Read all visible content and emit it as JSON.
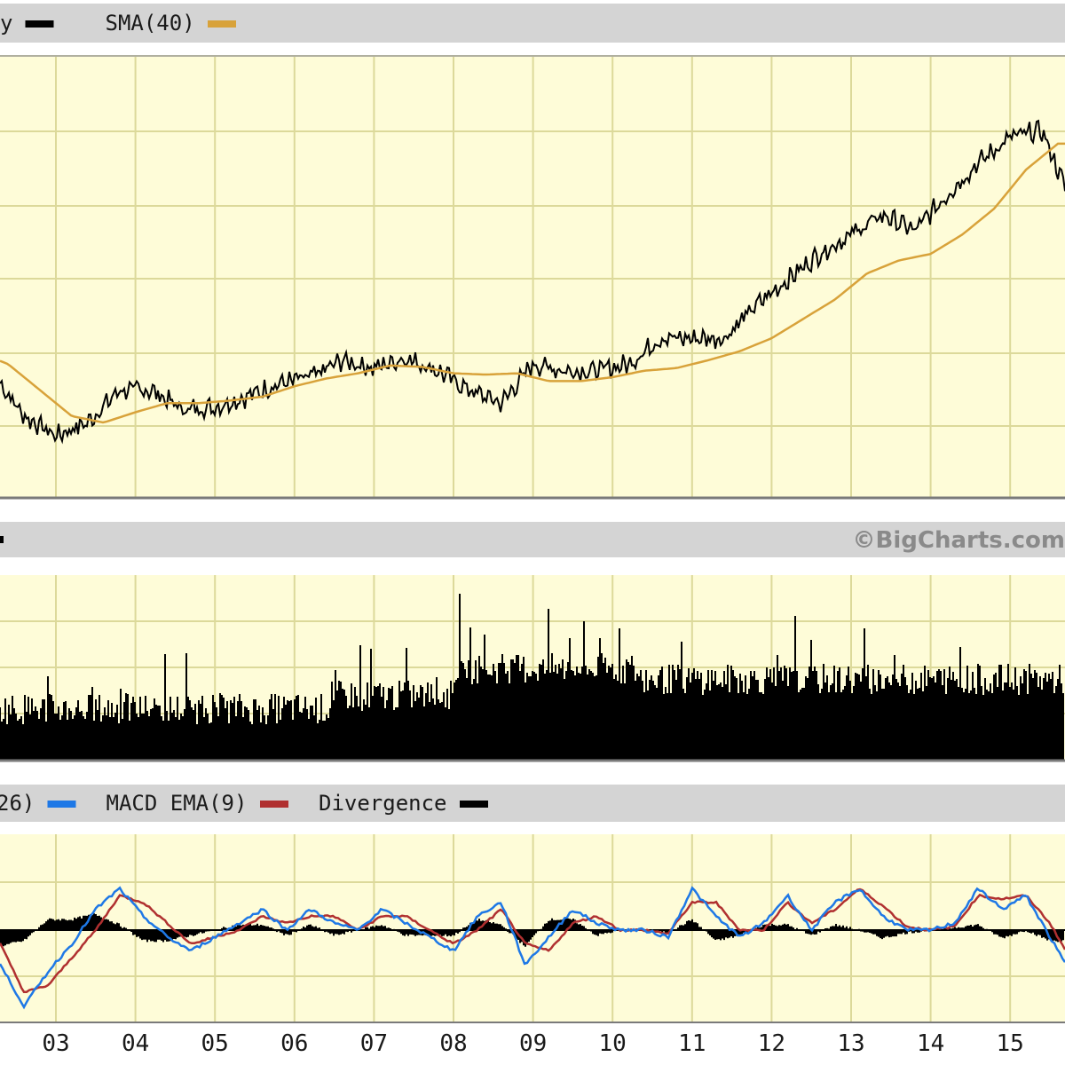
{
  "colors": {
    "panel_bg": "#fefcd8",
    "grid": "#dcd99a",
    "header_bg": "#d4d4d4",
    "frame": "#7a7a7a",
    "price_line": "#000000",
    "sma_line": "#d8a23a",
    "volume_bar": "#000000",
    "macd_line": "#1e78e6",
    "macd_ema_line": "#b03030",
    "divergence": "#000000",
    "credit": "#8a8a8a"
  },
  "legend_price": [
    {
      "label": "y",
      "color": "#000000"
    },
    {
      "label": "SMA(40)",
      "color": "#d8a23a"
    }
  ],
  "legend_macd": [
    {
      "label": "26)",
      "color": "#1e78e6"
    },
    {
      "label": "MACD EMA(9)",
      "color": "#b03030"
    },
    {
      "label": "Divergence",
      "color": "#000000"
    }
  ],
  "credit": "©BigCharts.com",
  "chart_data": [
    {
      "type": "line",
      "panel": "price",
      "x_ticks": [
        "03",
        "04",
        "05",
        "06",
        "07",
        "08",
        "09",
        "10",
        "11",
        "12",
        "13",
        "14",
        "15"
      ],
      "series": [
        {
          "name": "y",
          "x": [
            2.0,
            2.3,
            2.6,
            3.0,
            3.4,
            3.8,
            4.2,
            4.6,
            5.0,
            5.4,
            5.8,
            6.2,
            6.6,
            7.0,
            7.4,
            7.8,
            8.2,
            8.6,
            9.0,
            9.4,
            9.8,
            10.2,
            10.6,
            11.0,
            11.4,
            11.8,
            12.2,
            12.6,
            13.0,
            13.4,
            13.8,
            14.2,
            14.6,
            15.0,
            15.4,
            15.7
          ],
          "y": [
            3.9,
            3.6,
            3.35,
            3.2,
            3.3,
            3.55,
            3.55,
            3.4,
            3.42,
            3.5,
            3.6,
            3.65,
            3.78,
            3.72,
            3.8,
            3.7,
            3.55,
            3.45,
            3.75,
            3.7,
            3.7,
            3.75,
            3.95,
            3.95,
            3.95,
            4.2,
            4.4,
            4.6,
            4.75,
            4.9,
            4.78,
            5.05,
            5.3,
            5.5,
            5.55,
            5.1
          ]
        },
        {
          "name": "SMA(40)",
          "x": [
            2.0,
            2.4,
            2.8,
            3.2,
            3.6,
            4.0,
            4.4,
            4.8,
            5.2,
            5.6,
            6.0,
            6.4,
            6.8,
            7.2,
            7.6,
            8.0,
            8.4,
            8.8,
            9.2,
            9.6,
            10.0,
            10.4,
            10.8,
            11.2,
            11.6,
            12.0,
            12.4,
            12.8,
            13.2,
            13.6,
            14.0,
            14.4,
            14.8,
            15.2,
            15.6
          ],
          "y": [
            3.85,
            3.75,
            3.55,
            3.35,
            3.3,
            3.38,
            3.45,
            3.45,
            3.47,
            3.5,
            3.58,
            3.64,
            3.68,
            3.74,
            3.73,
            3.68,
            3.67,
            3.68,
            3.62,
            3.62,
            3.65,
            3.7,
            3.72,
            3.78,
            3.85,
            3.95,
            4.1,
            4.25,
            4.45,
            4.55,
            4.6,
            4.75,
            4.95,
            5.25,
            5.45
          ]
        }
      ]
    },
    {
      "type": "bar",
      "panel": "volume",
      "x_ticks": [
        "03",
        "04",
        "05",
        "06",
        "07",
        "08",
        "09",
        "10",
        "11",
        "12",
        "13",
        "14",
        "15"
      ],
      "note": "daily volume bars, heaviest around 08-10"
    },
    {
      "type": "line",
      "panel": "macd",
      "x_ticks": [
        "03",
        "04",
        "05",
        "06",
        "07",
        "08",
        "09",
        "10",
        "11",
        "12",
        "13",
        "14",
        "15"
      ],
      "series": [
        {
          "name": "26)",
          "x": [
            2.0,
            2.3,
            2.6,
            2.9,
            3.2,
            3.5,
            3.8,
            4.1,
            4.4,
            4.7,
            5.0,
            5.3,
            5.6,
            5.9,
            6.2,
            6.5,
            6.8,
            7.1,
            7.4,
            7.7,
            8.0,
            8.3,
            8.6,
            8.9,
            9.2,
            9.5,
            9.8,
            10.1,
            10.4,
            10.7,
            11.0,
            11.3,
            11.6,
            11.9,
            12.2,
            12.5,
            12.8,
            13.1,
            13.4,
            13.7,
            14.0,
            14.3,
            14.6,
            14.9,
            15.2,
            15.5,
            15.8
          ],
          "y": [
            0.3,
            -0.5,
            -1.1,
            -0.6,
            -0.2,
            0.3,
            0.6,
            0.2,
            -0.1,
            -0.3,
            -0.1,
            0.1,
            0.3,
            0.0,
            0.3,
            0.1,
            0.0,
            0.3,
            0.1,
            -0.1,
            -0.3,
            0.2,
            0.4,
            -0.5,
            -0.1,
            0.3,
            0.1,
            0.0,
            0.0,
            -0.1,
            0.6,
            0.2,
            -0.1,
            0.1,
            0.5,
            0.0,
            0.4,
            0.6,
            0.2,
            0.0,
            0.0,
            0.1,
            0.6,
            0.3,
            0.5,
            -0.1,
            -0.7
          ]
        },
        {
          "name": "MACD EMA(9)",
          "x": [
            2.0,
            2.3,
            2.6,
            2.9,
            3.2,
            3.5,
            3.8,
            4.1,
            4.4,
            4.7,
            5.0,
            5.3,
            5.6,
            5.9,
            6.2,
            6.5,
            6.8,
            7.1,
            7.4,
            7.7,
            8.0,
            8.3,
            8.6,
            8.9,
            9.2,
            9.5,
            9.8,
            10.1,
            10.4,
            10.7,
            11.0,
            11.3,
            11.6,
            11.9,
            12.2,
            12.5,
            12.8,
            13.1,
            13.4,
            13.7,
            14.0,
            14.3,
            14.6,
            14.9,
            15.2,
            15.5,
            15.8
          ],
          "y": [
            0.3,
            -0.2,
            -0.9,
            -0.8,
            -0.4,
            0.0,
            0.5,
            0.4,
            0.1,
            -0.2,
            -0.1,
            0.0,
            0.2,
            0.1,
            0.2,
            0.2,
            0.0,
            0.2,
            0.2,
            0.0,
            -0.2,
            0.0,
            0.3,
            -0.2,
            -0.3,
            0.1,
            0.2,
            0.0,
            0.0,
            -0.05,
            0.4,
            0.4,
            0.0,
            0.0,
            0.4,
            0.1,
            0.3,
            0.6,
            0.35,
            0.05,
            0.0,
            0.05,
            0.5,
            0.45,
            0.5,
            0.1,
            -0.5
          ]
        }
      ]
    }
  ]
}
